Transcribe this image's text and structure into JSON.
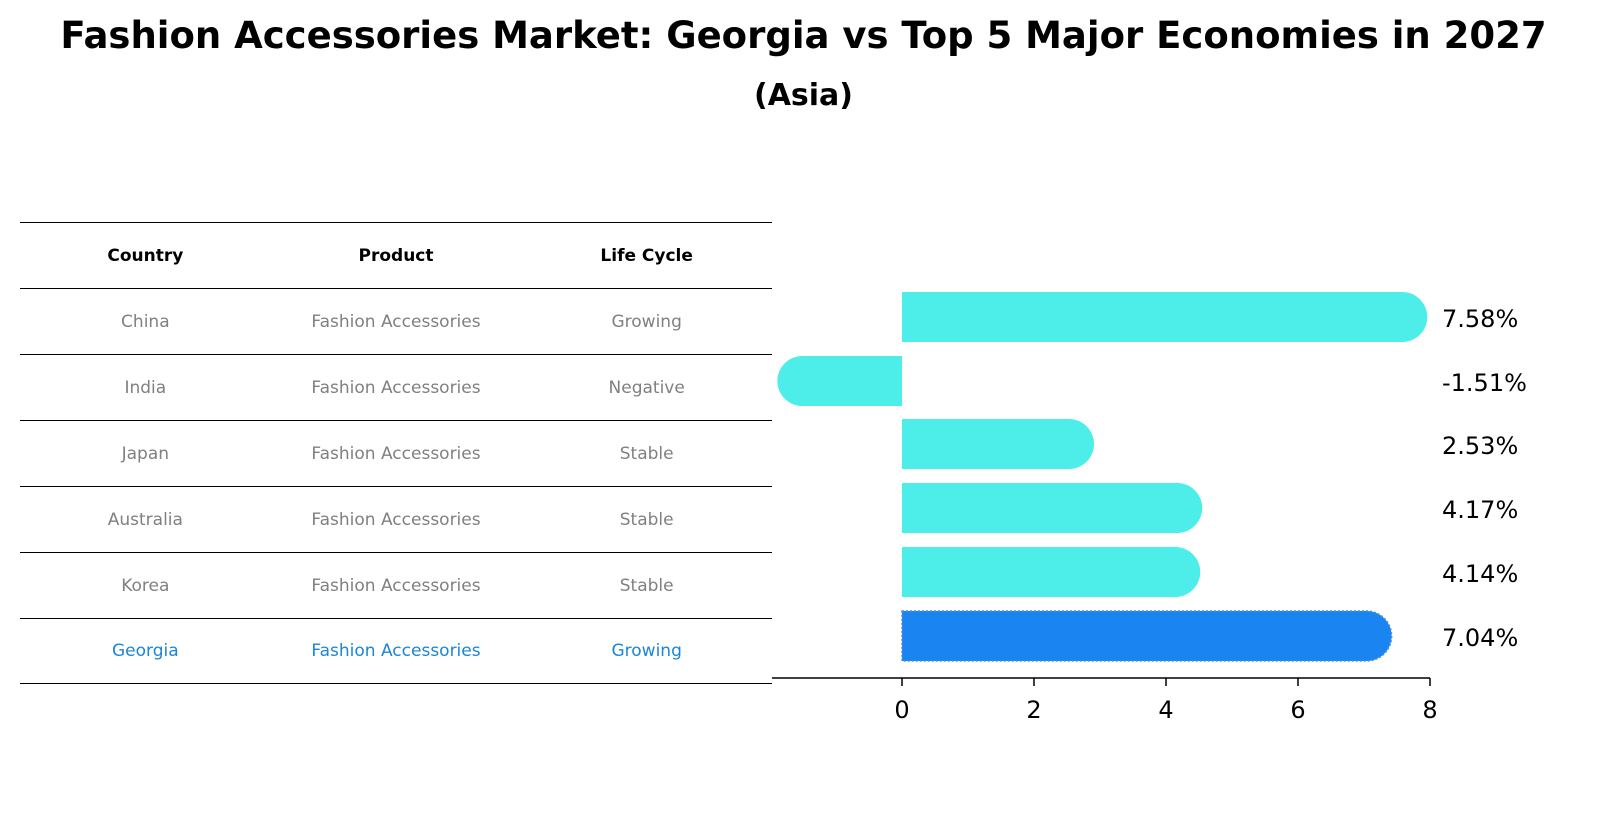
{
  "title": "Fashion Accessories Market: Georgia vs Top 5 Major Economies in 2027",
  "subtitle": "(Asia)",
  "table": {
    "headers": [
      "Country",
      "Product",
      "Life Cycle"
    ],
    "rows": [
      [
        "China",
        "Fashion Accessories",
        "Growing"
      ],
      [
        "India",
        "Fashion Accessories",
        "Negative"
      ],
      [
        "Japan",
        "Fashion Accessories",
        "Stable"
      ],
      [
        "Australia",
        "Fashion Accessories",
        "Stable"
      ],
      [
        "Korea",
        "Fashion Accessories",
        "Stable"
      ],
      [
        "Georgia",
        "Fashion Accessories",
        "Growing"
      ]
    ],
    "highlight_row": 5,
    "text_color": "#808080",
    "highlight_color": "#1a86d8"
  },
  "chart_data": {
    "type": "bar",
    "orientation": "horizontal",
    "categories": [
      "China",
      "India",
      "Japan",
      "Australia",
      "Korea",
      "Georgia"
    ],
    "values": [
      7.58,
      -1.51,
      2.53,
      4.17,
      4.14,
      7.04
    ],
    "labels": [
      "7.58%",
      "-1.51%",
      "2.53%",
      "4.17%",
      "4.14%",
      "7.04%"
    ],
    "bar_color": "#4deeea",
    "highlight_category": "Georgia",
    "highlight_color": "#1a85f0",
    "xlim": [
      -2,
      8
    ],
    "xticks": [
      0,
      2,
      4,
      6,
      8
    ],
    "grid": false,
    "xlabel": "",
    "ylabel": ""
  }
}
